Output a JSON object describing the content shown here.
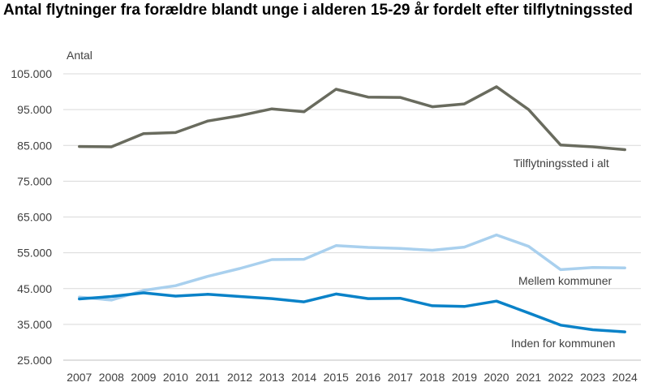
{
  "chart_data": {
    "type": "line",
    "title": "Antal flytninger fra forældre blandt unge i alderen 15-29 år fordelt efter tilflytningssted",
    "ylabel": "Antal",
    "xlabel": "",
    "x": [
      "2007",
      "2008",
      "2009",
      "2010",
      "2011",
      "2012",
      "2013",
      "2014",
      "2015",
      "2016",
      "2017",
      "2018",
      "2019",
      "2020",
      "2021",
      "2022",
      "2023",
      "2024"
    ],
    "yticks": [
      "25.000",
      "35.000",
      "45.000",
      "55.000",
      "65.000",
      "75.000",
      "85.000",
      "95.000",
      "105.000"
    ],
    "ylim": [
      25000,
      105000
    ],
    "grid": true,
    "series": [
      {
        "name": "Tilflytningssted i alt",
        "color": "#696b5e",
        "values": [
          84700,
          84600,
          88300,
          88600,
          91800,
          93300,
          95200,
          94400,
          100700,
          98500,
          98400,
          95800,
          96600,
          101400,
          95000,
          85100,
          84600,
          83800
        ]
      },
      {
        "name": "Mellem kommuner",
        "color": "#a9d0ee",
        "values": [
          42600,
          41800,
          44500,
          45800,
          48400,
          50600,
          53100,
          53200,
          57000,
          56500,
          56200,
          55700,
          56600,
          60000,
          56800,
          50300,
          50900,
          50800
        ]
      },
      {
        "name": "Inden for kommunen",
        "color": "#0a82c8",
        "values": [
          42100,
          42800,
          43800,
          42900,
          43400,
          42800,
          42200,
          41300,
          43500,
          42200,
          42300,
          40200,
          40000,
          41500,
          38200,
          34800,
          33500,
          32900
        ]
      }
    ]
  }
}
